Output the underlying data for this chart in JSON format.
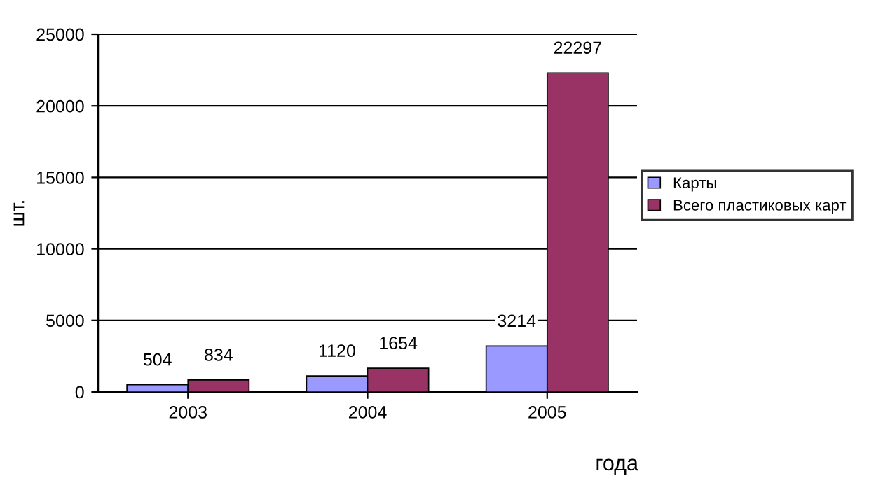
{
  "chart_data": {
    "type": "bar",
    "xlabel": "года",
    "ylabel": "шт.",
    "categories": [
      "2003",
      "2004",
      "2005"
    ],
    "series": [
      {
        "name": "Карты",
        "color": "#9999ff",
        "values": [
          504,
          1120,
          3214
        ]
      },
      {
        "name": "Всего пластиковых карт",
        "color": "#993366",
        "values": [
          834,
          1654,
          22297
        ]
      }
    ],
    "ylim": [
      0,
      25000
    ],
    "yticks": [
      0,
      5000,
      10000,
      15000,
      20000,
      25000
    ],
    "grid": "y",
    "legend": "right",
    "data_labels": true
  }
}
